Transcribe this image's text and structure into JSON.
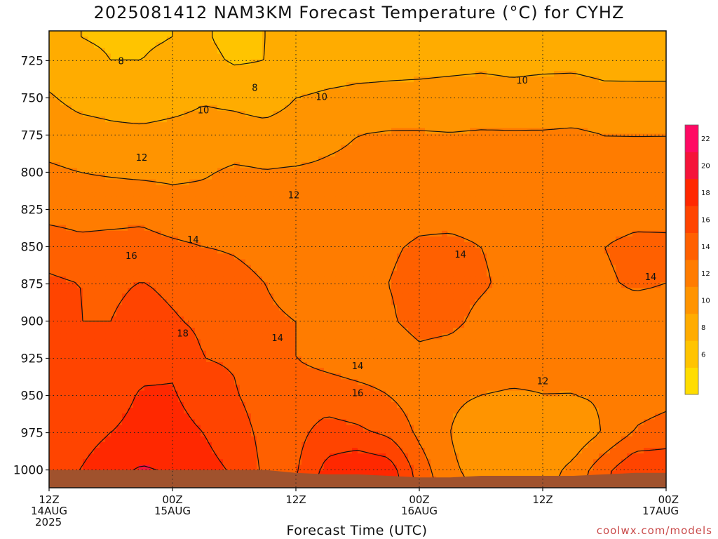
{
  "chart_data": {
    "type": "heatmap",
    "title": "2025081412 NAM3KM Forecast Temperature (°C) for CYHZ",
    "xlabel": "Forecast Time (UTC)",
    "ylabel": "",
    "y_axis": {
      "ticks": [
        725,
        750,
        775,
        800,
        825,
        850,
        875,
        900,
        925,
        950,
        975,
        1000
      ],
      "ylim": [
        1012,
        705
      ],
      "grid": "dotted"
    },
    "x_axis": {
      "ticks": [
        {
          "line1": "12Z",
          "line2": "14AUG",
          "line3": "2025",
          "hour": 0
        },
        {
          "line1": "00Z",
          "line2": "15AUG",
          "line3": "",
          "hour": 12
        },
        {
          "line1": "12Z",
          "line2": "",
          "line3": "",
          "hour": 24
        },
        {
          "line1": "00Z",
          "line2": "16AUG",
          "line3": "",
          "hour": 36
        },
        {
          "line1": "12Z",
          "line2": "",
          "line3": "",
          "hour": 48
        },
        {
          "line1": "00Z",
          "line2": "17AUG",
          "line3": "",
          "hour": 60
        }
      ],
      "xlim": [
        0,
        60
      ],
      "grid": "dotted"
    },
    "colorbar": {
      "levels": [
        4,
        6,
        8,
        10,
        12,
        14,
        16,
        18,
        20,
        22,
        24
      ],
      "labels": [
        "6",
        "8",
        "10",
        "12",
        "14",
        "16",
        "18",
        "20",
        "22"
      ],
      "colors": [
        "#ffdd00",
        "#ffc400",
        "#ffac00",
        "#ff9400",
        "#ff7c00",
        "#ff6000",
        "#ff4400",
        "#ff2800",
        "#f5143a",
        "#ff0a64"
      ]
    },
    "x_hours": [
      0,
      3,
      6,
      9,
      12,
      15,
      18,
      21,
      24,
      27,
      30,
      33,
      36,
      39,
      42,
      45,
      48,
      51,
      54,
      57,
      60
    ],
    "levels_hpa": [
      710,
      725,
      750,
      775,
      800,
      825,
      850,
      875,
      900,
      925,
      950,
      975,
      1000,
      1012
    ],
    "temperature_grid": [
      [
        8.5,
        8.0,
        7.8,
        7.8,
        8.0,
        8.2,
        7.5,
        8.0,
        8.5,
        9.0,
        9.0,
        9.0,
        9.0,
        9.2,
        9.4,
        9.0,
        9.0,
        9.2,
        9.0,
        9.0,
        9.0
      ],
      [
        9.0,
        8.5,
        8.0,
        8.0,
        8.4,
        8.5,
        7.8,
        8.0,
        8.6,
        9.0,
        9.2,
        9.4,
        9.4,
        9.5,
        9.6,
        9.5,
        9.6,
        9.6,
        9.4,
        9.5,
        9.5
      ],
      [
        10.2,
        9.4,
        9.2,
        8.8,
        9.2,
        9.8,
        9.5,
        9.0,
        10.0,
        10.3,
        10.5,
        10.5,
        10.6,
        10.7,
        10.8,
        10.6,
        10.7,
        10.8,
        10.5,
        10.4,
        10.4
      ],
      [
        11.2,
        10.8,
        10.5,
        10.5,
        10.7,
        10.8,
        10.9,
        10.8,
        11.0,
        11.6,
        12.0,
        12.2,
        12.2,
        12.1,
        12.2,
        12.2,
        12.2,
        12.3,
        12.0,
        12.0,
        12.0
      ],
      [
        12.3,
        12.0,
        11.8,
        11.6,
        11.5,
        11.8,
        12.3,
        12.1,
        12.2,
        12.3,
        12.4,
        12.6,
        12.7,
        12.7,
        12.7,
        12.6,
        12.6,
        12.7,
        12.7,
        12.5,
        12.6
      ],
      [
        13.3,
        13.2,
        13.3,
        13.5,
        13.0,
        12.8,
        13.0,
        12.6,
        12.6,
        12.6,
        12.8,
        13.2,
        13.5,
        13.3,
        13.2,
        13.0,
        13.0,
        13.1,
        13.2,
        13.4,
        13.5
      ],
      [
        15.0,
        14.5,
        14.6,
        14.6,
        14.3,
        14.0,
        13.8,
        13.4,
        13.2,
        13.3,
        13.4,
        13.8,
        14.2,
        14.4,
        14.0,
        13.6,
        13.4,
        13.6,
        14.0,
        14.4,
        14.3
      ],
      [
        16.4,
        16.0,
        15.6,
        16.1,
        15.6,
        15.2,
        14.6,
        14.0,
        13.6,
        13.6,
        13.6,
        14.0,
        14.5,
        14.6,
        14.2,
        13.6,
        13.3,
        13.4,
        13.8,
        14.2,
        14.0
      ],
      [
        17.0,
        16.0,
        16.0,
        16.8,
        16.2,
        15.6,
        15.0,
        14.2,
        14.0,
        13.8,
        13.8,
        13.8,
        14.5,
        14.4,
        13.6,
        13.2,
        13.0,
        13.0,
        13.1,
        13.2,
        13.2
      ],
      [
        17.0,
        16.0,
        16.4,
        17.4,
        17.6,
        16.0,
        15.8,
        14.4,
        14.0,
        13.4,
        13.0,
        13.0,
        13.6,
        13.3,
        13.0,
        12.8,
        12.4,
        12.2,
        12.0,
        12.2,
        12.0
      ],
      [
        16.0,
        16.0,
        17.2,
        18.2,
        18.2,
        17.0,
        16.2,
        15.0,
        15.0,
        15.0,
        14.6,
        14.0,
        13.0,
        12.4,
        12.0,
        11.8,
        12.0,
        12.0,
        12.2,
        13.0,
        13.4
      ],
      [
        16.0,
        17.0,
        18.0,
        18.6,
        18.8,
        18.0,
        17.0,
        15.4,
        15.4,
        16.8,
        16.4,
        15.6,
        13.6,
        12.0,
        10.5,
        10.0,
        10.2,
        10.5,
        12.2,
        14.2,
        14.8
      ],
      [
        17.0,
        18.0,
        19.5,
        20.2,
        19.8,
        18.6,
        17.8,
        15.6,
        15.8,
        18.6,
        19.8,
        19.2,
        15.0,
        12.4,
        11.2,
        11.0,
        11.0,
        12.6,
        15.4,
        17.8,
        17.6
      ],
      [
        17.4,
        18.4,
        20.0,
        20.6,
        20.2,
        19.0,
        18.0,
        15.8,
        16.2,
        19.2,
        20.4,
        19.8,
        15.4,
        12.8,
        11.6,
        11.4,
        11.4,
        13.0,
        15.8,
        18.2,
        18.0
      ]
    ],
    "contour_labels": [
      {
        "text": "8",
        "hour": 7.0,
        "p": 725
      },
      {
        "text": "8",
        "hour": 20.0,
        "p": 743
      },
      {
        "text": "10",
        "hour": 15.0,
        "p": 758
      },
      {
        "text": "10",
        "hour": 26.5,
        "p": 749
      },
      {
        "text": "10",
        "hour": 46.0,
        "p": 738
      },
      {
        "text": "12",
        "hour": 9.0,
        "p": 790
      },
      {
        "text": "12",
        "hour": 23.8,
        "p": 815
      },
      {
        "text": "14",
        "hour": 14.0,
        "p": 845
      },
      {
        "text": "14",
        "hour": 40.0,
        "p": 855
      },
      {
        "text": "14",
        "hour": 58.5,
        "p": 870
      },
      {
        "text": "14",
        "hour": 22.2,
        "p": 911
      },
      {
        "text": "14",
        "hour": 30.0,
        "p": 930
      },
      {
        "text": "16",
        "hour": 8.0,
        "p": 856
      },
      {
        "text": "16",
        "hour": 30.0,
        "p": 948
      },
      {
        "text": "12",
        "hour": 48.0,
        "p": 940
      },
      {
        "text": "18",
        "hour": 13.0,
        "p": 908
      }
    ],
    "ground_hpa": [
      1000,
      1000,
      1000,
      1000,
      1000,
      1000,
      1000,
      1000,
      1002,
      1003,
      1003,
      1004,
      1005,
      1005,
      1004,
      1004,
      1004,
      1004,
      1003,
      1002,
      1002
    ],
    "colors": {
      "ground": "#a0522d",
      "contour": "#111111",
      "grid": "#222222"
    }
  },
  "watermark": "coolwx.com/models"
}
